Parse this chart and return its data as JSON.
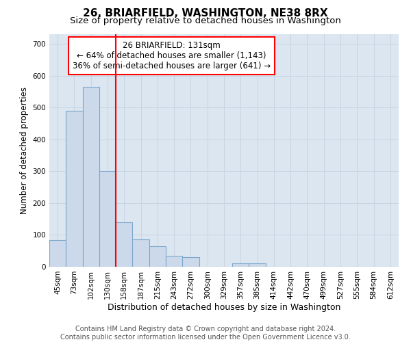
{
  "title": "26, BRIARFIELD, WASHINGTON, NE38 8RX",
  "subtitle": "Size of property relative to detached houses in Washington",
  "xlabel": "Distribution of detached houses by size in Washington",
  "ylabel": "Number of detached properties",
  "bar_labels": [
    "45sqm",
    "73sqm",
    "102sqm",
    "130sqm",
    "158sqm",
    "187sqm",
    "215sqm",
    "243sqm",
    "272sqm",
    "300sqm",
    "329sqm",
    "357sqm",
    "385sqm",
    "414sqm",
    "442sqm",
    "470sqm",
    "499sqm",
    "527sqm",
    "555sqm",
    "584sqm",
    "612sqm"
  ],
  "bar_values": [
    83,
    490,
    565,
    300,
    140,
    85,
    65,
    35,
    30,
    0,
    0,
    10,
    10,
    0,
    0,
    0,
    0,
    0,
    0,
    0,
    0
  ],
  "bar_color": "#ccd9ea",
  "bar_edgecolor": "#7ba7cc",
  "bar_linewidth": 0.8,
  "vline_x": 3.5,
  "vline_color": "red",
  "vline_linewidth": 1.5,
  "annotation_text": "26 BRIARFIELD: 131sqm\n← 64% of detached houses are smaller (1,143)\n36% of semi-detached houses are larger (641) →",
  "annotation_box_color": "white",
  "annotation_box_edgecolor": "red",
  "ylim": [
    0,
    730
  ],
  "yticks": [
    0,
    100,
    200,
    300,
    400,
    500,
    600,
    700
  ],
  "grid_color": "#c8d4e4",
  "background_color": "#dce6f0",
  "footnote": "Contains HM Land Registry data © Crown copyright and database right 2024.\nContains public sector information licensed under the Open Government Licence v3.0.",
  "title_fontsize": 11,
  "subtitle_fontsize": 9.5,
  "xlabel_fontsize": 9,
  "ylabel_fontsize": 8.5,
  "tick_fontsize": 7.5,
  "annotation_fontsize": 8.5,
  "footnote_fontsize": 7
}
